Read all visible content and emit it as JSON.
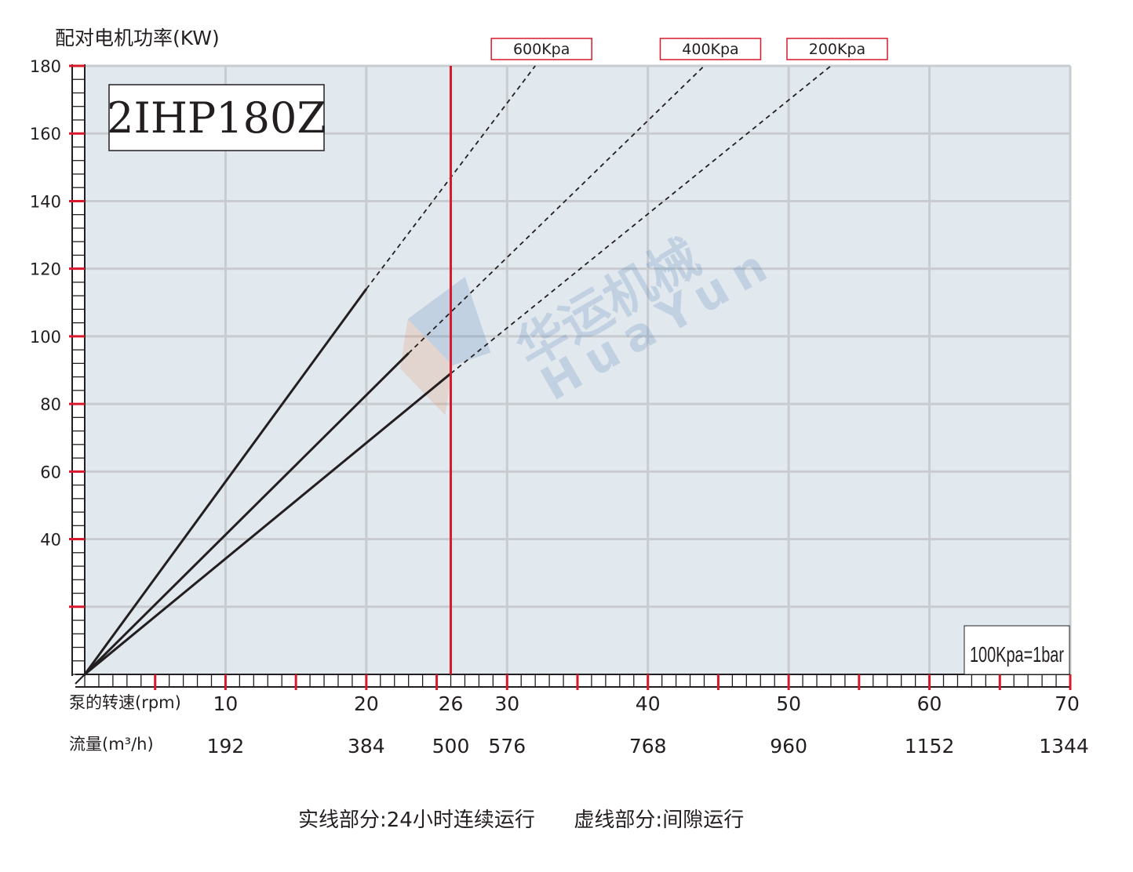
{
  "chart_data": {
    "type": "line",
    "title": "2IHP180Z",
    "ylabel": "配对电机功率(KW)",
    "xlabel": "泵的转速(rpm)",
    "x2label": "流量(m³/h)",
    "ylim": [
      0,
      180
    ],
    "xlim": [
      0,
      70
    ],
    "y_ticks": [
      40,
      60,
      80,
      100,
      120,
      140,
      160,
      180
    ],
    "x_ticks": [
      10,
      20,
      26,
      30,
      40,
      50,
      60,
      70
    ],
    "flow_ticks": [
      "192",
      "384",
      "500",
      "576",
      "768",
      "960",
      "1152",
      "1344"
    ],
    "rated_speed_line": 26,
    "grid": true,
    "series": [
      {
        "name": "600Kpa",
        "solid": [
          [
            0,
            0
          ],
          [
            20,
            114
          ]
        ],
        "dashed": [
          [
            20,
            114
          ],
          [
            32,
            180
          ]
        ]
      },
      {
        "name": "400Kpa",
        "solid": [
          [
            0,
            0
          ],
          [
            23,
            95
          ]
        ],
        "dashed": [
          [
            23,
            95
          ],
          [
            44,
            180
          ]
        ]
      },
      {
        "name": "200Kpa",
        "solid": [
          [
            0,
            0
          ],
          [
            26,
            89
          ]
        ],
        "dashed": [
          [
            26,
            89
          ],
          [
            53,
            180
          ]
        ]
      }
    ],
    "conversion_note": "100Kpa=1bar",
    "legend_note": "实线部分:24小时连续运行      虚线部分:间隙运行",
    "watermark": {
      "cn": "华运机械",
      "en": "HuaYun"
    }
  },
  "colors": {
    "plot_bg": "#e1e8ee",
    "grid": "#c8cbd0",
    "axis_red": "#d7192b",
    "line": "#231f20"
  }
}
